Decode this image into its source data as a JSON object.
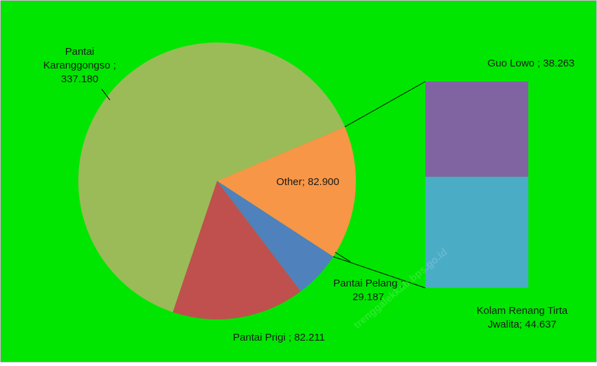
{
  "chart_data": {
    "type": "pie",
    "subtype": "bar-of-pie",
    "background": "#00e600",
    "slices": [
      {
        "name": "Pantai Karanggongso",
        "value": 337.18,
        "color": "#9bbb59",
        "label": [
          "Pantai",
          "Karanggongso ;",
          "337.180"
        ]
      },
      {
        "name": "Other",
        "value": 82.9,
        "color": "#f79646",
        "label": [
          "Other; 82.900"
        ]
      },
      {
        "name": "Pantai Pelang",
        "value": 29.187,
        "color": "#4f81bd",
        "label": [
          "Pantai Pelang ;",
          "29.187"
        ]
      },
      {
        "name": "Pantai Prigi",
        "value": 82.211,
        "color": "#c0504d",
        "label": [
          "Pantai Prigi ; 82.211"
        ]
      }
    ],
    "secondary_bar": [
      {
        "name": "Guo Lowo",
        "value": 38.263,
        "color": "#8064a2",
        "label": [
          "Guo Lowo ; 38.263"
        ]
      },
      {
        "name": "Kolam Renang Tirta Jwalita",
        "value": 44.637,
        "color": "#4bacc6",
        "label": [
          "Kolam Renang Tirta",
          "Jwalita; 44.637"
        ]
      }
    ],
    "legend": "none"
  },
  "watermark": {
    "text": "trenggalekkab.bps.go.id"
  }
}
